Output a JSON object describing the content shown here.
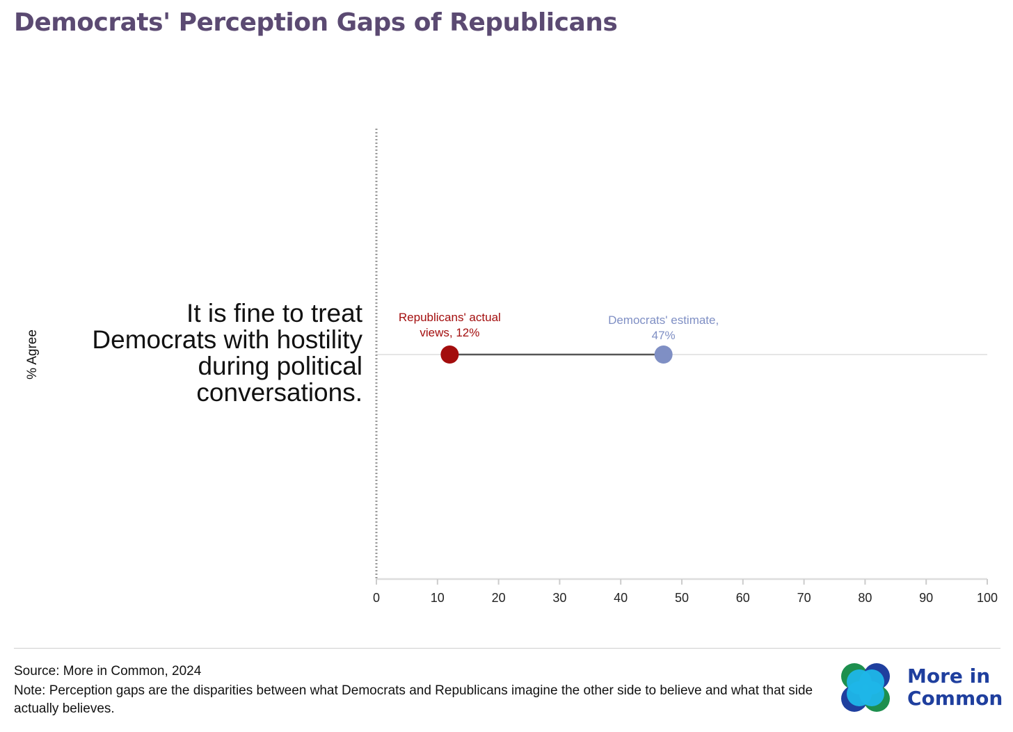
{
  "title": "Democrats' Perception Gaps of Republicans",
  "chart_data": {
    "type": "dumbbell",
    "orientation": "horizontal",
    "categories": [
      "It is fine to treat Democrats with hostility during political conversations."
    ],
    "category_lines": [
      "It is fine to treat",
      "Democrats with hostility",
      "during political",
      "conversations."
    ],
    "ylabel": "% Agree",
    "xlabel": "",
    "xlim": [
      0,
      100
    ],
    "xticks": [
      0,
      10,
      20,
      30,
      40,
      50,
      60,
      70,
      80,
      90,
      100
    ],
    "grid": false,
    "series": [
      {
        "name": "Republicans' actual views",
        "values": [
          12
        ],
        "color": "#a30d0d",
        "label_lines": [
          "Republicans' actual",
          "views, 12%"
        ]
      },
      {
        "name": "Democrats' estimate",
        "values": [
          47
        ],
        "color": "#7f8fc4",
        "label_lines": [
          "Democrats' estimate,",
          "47%"
        ]
      }
    ],
    "connector_color": "#555555"
  },
  "footer": {
    "source": "Source: More in Common, 2024",
    "note": "Note: Perception gaps are the disparities between what Democrats and Republicans imagine the other side to believe and what that side actually believes."
  },
  "logo": {
    "name": "more-in-common-logo",
    "text_lines": [
      "More in",
      "Common"
    ],
    "colors": [
      "#1d8f4e",
      "#1f3f9e",
      "#1fb6e8"
    ]
  }
}
